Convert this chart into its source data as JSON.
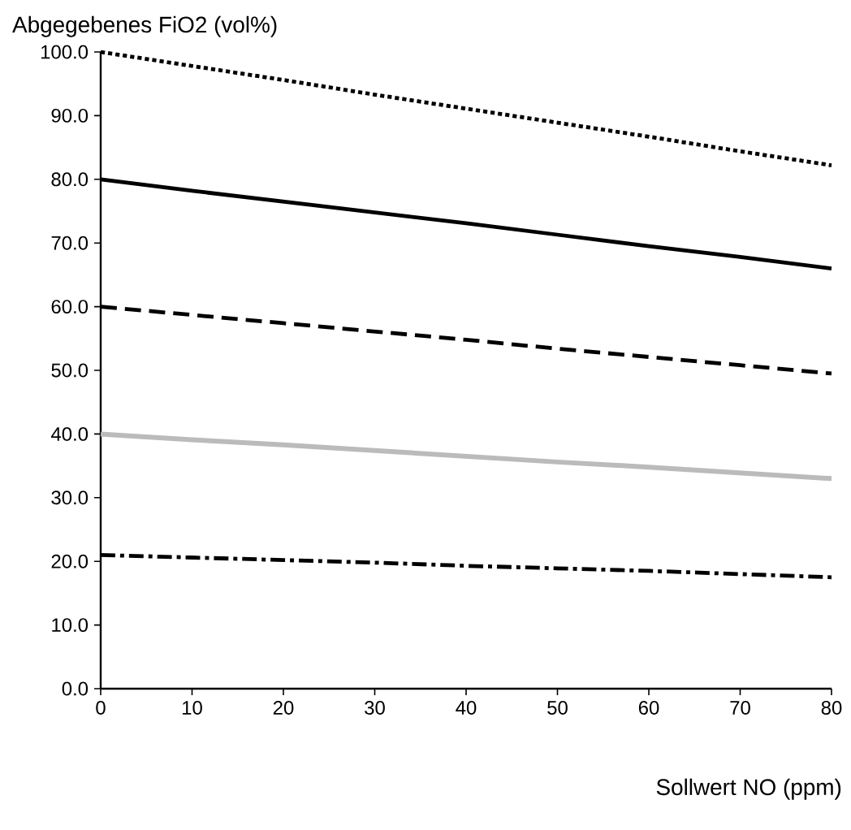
{
  "chart_data": {
    "type": "line",
    "xlabel": "Sollwert NO (ppm)",
    "ylabel": "Abgegebenes FiO2 (vol%)",
    "x": [
      0,
      10,
      20,
      30,
      40,
      50,
      60,
      70,
      80
    ],
    "xlim": [
      0,
      80
    ],
    "xticks": [
      0,
      10,
      20,
      30,
      40,
      50,
      60,
      70,
      80
    ],
    "ylim": [
      0,
      100
    ],
    "yticks": [
      {
        "value": 0,
        "label": "0.0"
      },
      {
        "value": 10,
        "label": "10.0"
      },
      {
        "value": 20,
        "label": "20.0"
      },
      {
        "value": 30,
        "label": "30.0"
      },
      {
        "value": 40,
        "label": "40.0"
      },
      {
        "value": 50,
        "label": "50.0"
      },
      {
        "value": 60,
        "label": "60.0"
      },
      {
        "value": 70,
        "label": "70.0"
      },
      {
        "value": 80,
        "label": "80.0"
      },
      {
        "value": 90,
        "label": "90.0"
      },
      {
        "value": 100,
        "label": "100.0"
      }
    ],
    "grid": false,
    "marker": "none",
    "series": [
      {
        "color": "#000000",
        "line_style": "dotted",
        "values": [
          100,
          97.8,
          95.6,
          93.3,
          91.1,
          88.9,
          86.7,
          84.4,
          82.2
        ]
      },
      {
        "color": "#000000",
        "line_style": "solid",
        "values": [
          80,
          78.2,
          76.5,
          74.8,
          73.1,
          71.3,
          69.5,
          67.8,
          66
        ]
      },
      {
        "color": "#000000",
        "line_style": "dashed",
        "values": [
          60,
          58.7,
          57.4,
          56.1,
          54.8,
          53.4,
          52.1,
          50.8,
          49.5
        ]
      },
      {
        "color": "#bbbbbb",
        "line_style": "solid",
        "values": [
          40,
          39.1,
          38.3,
          37.4,
          36.5,
          35.6,
          34.8,
          33.9,
          33
        ]
      },
      {
        "color": "#000000",
        "line_style": "dashdot",
        "values": [
          21,
          20.6,
          20.2,
          19.8,
          19.3,
          18.9,
          18.5,
          18.0,
          17.5
        ]
      }
    ]
  }
}
